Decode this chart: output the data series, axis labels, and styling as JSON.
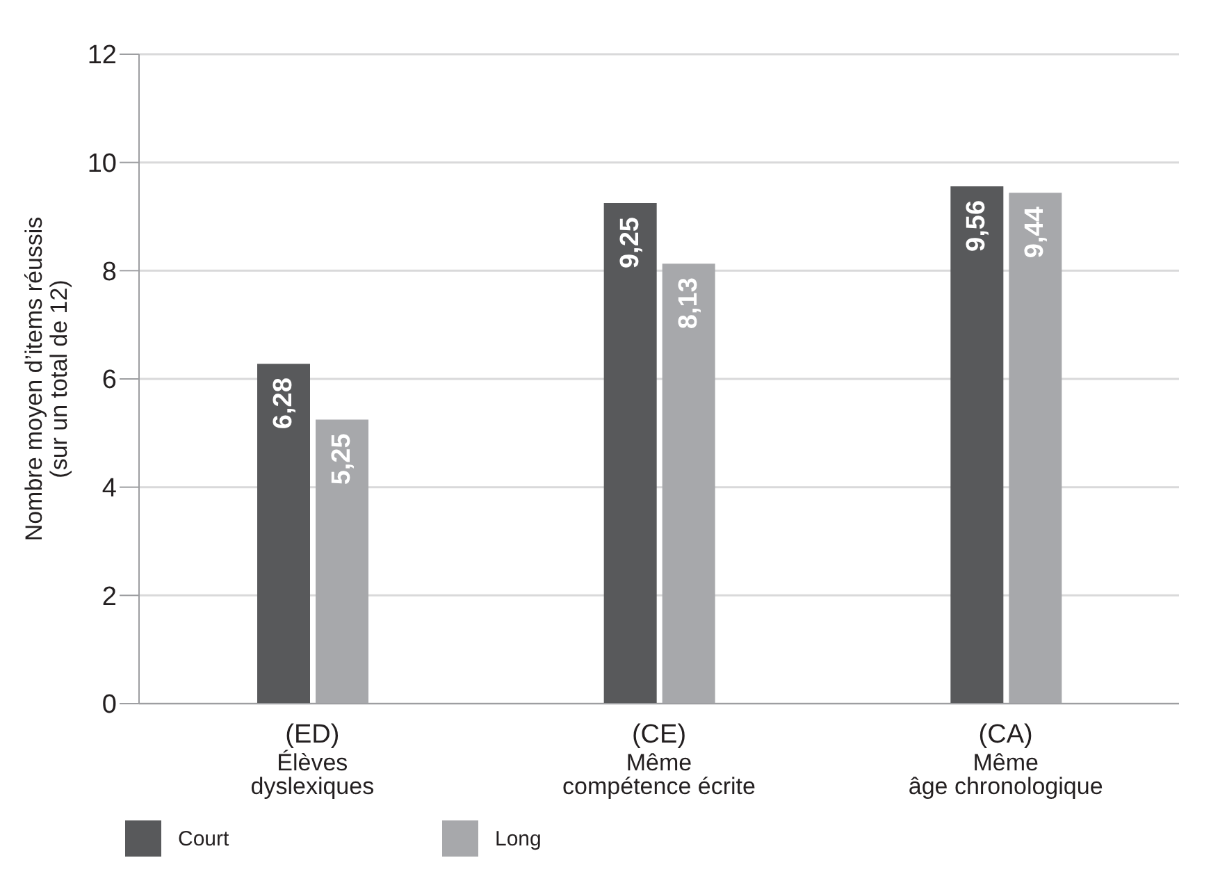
{
  "chart_data": {
    "type": "bar",
    "ylabel": "Nombre moyen d’items réussis\n(sur un total de 12)",
    "categories": [
      "(ED)\nÉlèves\ndyslexiques",
      "(CE)\nMême\ncompétence écrite",
      "(CA)\nMême\nâge chronologique"
    ],
    "series": [
      {
        "name": "Court",
        "color": "#58595b",
        "values": [
          6.28,
          9.25,
          9.56
        ],
        "value_labels": [
          "6,28",
          "9,25",
          "9,56"
        ]
      },
      {
        "name": "Long",
        "color": "#a7a8ab",
        "values": [
          5.25,
          8.13,
          9.44
        ],
        "value_labels": [
          "5,25",
          "8,13",
          "9,44"
        ]
      }
    ],
    "ylim": [
      0,
      12
    ],
    "yticks": [
      0,
      2,
      4,
      6,
      8,
      10,
      12
    ],
    "grid": "y",
    "legend": "bottom left"
  }
}
